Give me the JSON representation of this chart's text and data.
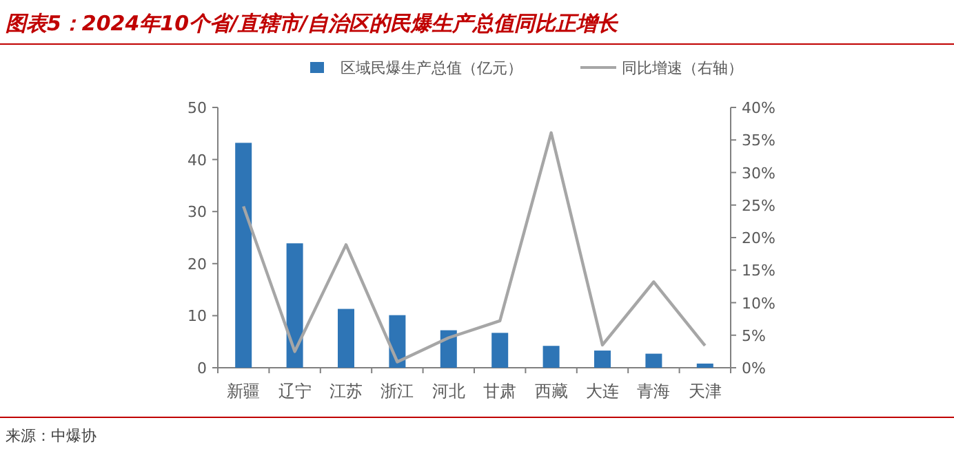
{
  "chart_data": {
    "type": "bar",
    "title": "图表5：2024年10个省/直辖市/自治区的民爆生产总值同比正增长",
    "categories": [
      "新疆",
      "辽宁",
      "江苏",
      "浙江",
      "河北",
      "甘肃",
      "西藏",
      "大连",
      "青海",
      "天津"
    ],
    "series": [
      {
        "name": "区域民爆生产总值（亿元）",
        "color": "#2e75b6",
        "values": [
          43.2,
          23.9,
          11.3,
          10.1,
          7.2,
          6.7,
          4.2,
          3.3,
          2.7,
          0.8
        ]
      },
      {
        "name": "同比增速（右轴）",
        "color": "#a6a6a6",
        "type": "line",
        "axis": "y2",
        "values": [
          24.8,
          2.5,
          18.9,
          0.9,
          4.6,
          7.2,
          36.1,
          3.5,
          13.2,
          3.4
        ]
      }
    ],
    "ylim": [
      0,
      50
    ],
    "yticks": [
      0,
      10,
      20,
      30,
      40,
      50
    ],
    "y2lim": [
      0,
      40
    ],
    "y2ticks": [
      {
        "value": 0,
        "label": "0%"
      },
      {
        "value": 5,
        "label": "5%"
      },
      {
        "value": 10,
        "label": "10%"
      },
      {
        "value": 15,
        "label": "15%"
      },
      {
        "value": 20,
        "label": "20%"
      },
      {
        "value": 25,
        "label": "25%"
      },
      {
        "value": 30,
        "label": "30%"
      },
      {
        "value": 35,
        "label": "35%"
      },
      {
        "value": 40,
        "label": "40%"
      }
    ],
    "legend": "top",
    "annotations": [
      "来源：中爆协"
    ]
  }
}
